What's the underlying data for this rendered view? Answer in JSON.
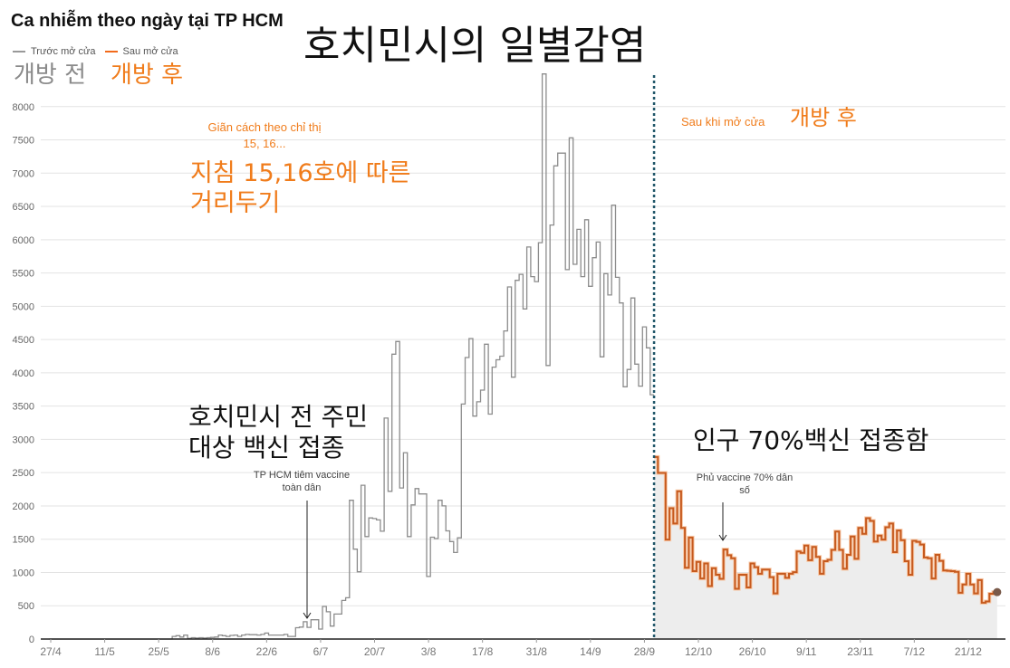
{
  "header": {
    "title": "Ca nhiễm theo ngày tại TP HCM"
  },
  "overlay_ko": {
    "title": "호치민시의 일별감염",
    "before": "개방 전",
    "after": "개방 후",
    "distancing_line1": "지침 15,16호에 따른",
    "distancing_line2": "거리두기",
    "after_reopen": "개방 후",
    "vaccine_line1": "호치민시 전 주민",
    "vaccine_line2": "대상 백신 접종",
    "seventy": "인구 70%백신 접종함"
  },
  "chart_data": {
    "type": "line",
    "step": true,
    "title": "Ca nhiễm theo ngày tại TP HCM",
    "xlabel": "",
    "ylabel": "",
    "ylim": [
      0,
      8500
    ],
    "yticks": [
      0,
      500,
      1000,
      1500,
      2000,
      2500,
      3000,
      3500,
      4000,
      4500,
      5000,
      5500,
      6000,
      6500,
      7000,
      7500,
      8000
    ],
    "xticks": [
      "27/4",
      "11/5",
      "25/5",
      "8/6",
      "22/6",
      "6/7",
      "20/7",
      "3/8",
      "17/8",
      "31/8",
      "14/9",
      "28/9",
      "12/10",
      "26/10",
      "9/11",
      "23/11",
      "7/12",
      "21/12"
    ],
    "grid": {
      "horizontal": true,
      "vertical": false
    },
    "legend_placement": "top-left",
    "colors": {
      "before": "#8c8c8c",
      "after": "#c65a1e",
      "after_fill": "#ededed",
      "reopen_line": "#1f5568",
      "end_dot": "#7a5a4a",
      "annotation": "#f07c1b"
    },
    "series": [
      {
        "name": "Trước mở cửa",
        "x": [
          "27/4",
          "28/4",
          "29/4",
          "30/4",
          "1/5",
          "2/5",
          "3/5",
          "4/5",
          "5/5",
          "6/5",
          "7/5",
          "8/5",
          "9/5",
          "10/5",
          "11/5",
          "12/5",
          "13/5",
          "14/5",
          "15/5",
          "16/5",
          "17/5",
          "18/5",
          "19/5",
          "20/5",
          "21/5",
          "22/5",
          "23/5",
          "24/5",
          "25/5",
          "26/5",
          "27/5",
          "28/5",
          "29/5",
          "30/5",
          "31/5",
          "1/6",
          "2/6",
          "3/6",
          "4/6",
          "5/6",
          "6/6",
          "7/6",
          "8/6",
          "9/6",
          "10/6",
          "11/6",
          "12/6",
          "13/6",
          "14/6",
          "15/6",
          "16/6",
          "17/6",
          "18/6",
          "19/6",
          "20/6",
          "21/6",
          "22/6",
          "23/6",
          "24/6",
          "25/6",
          "26/6",
          "27/6",
          "28/6",
          "29/6",
          "30/6",
          "1/7",
          "2/7",
          "3/7",
          "4/7",
          "5/7",
          "6/7",
          "7/7",
          "8/7",
          "9/7",
          "10/7",
          "11/7",
          "12/7",
          "13/7",
          "14/7",
          "15/7",
          "16/7",
          "17/7",
          "18/7",
          "19/7",
          "20/7",
          "21/7",
          "22/7",
          "23/7",
          "24/7",
          "25/7",
          "26/7",
          "27/7",
          "28/7",
          "29/7",
          "30/7",
          "31/7",
          "1/8",
          "2/8",
          "3/8",
          "4/8",
          "5/8",
          "6/8",
          "7/8",
          "8/8",
          "9/8",
          "10/8",
          "11/8",
          "12/8",
          "13/8",
          "14/8",
          "15/8",
          "16/8",
          "17/8",
          "18/8",
          "19/8",
          "20/8",
          "21/8",
          "22/8",
          "23/8",
          "24/8",
          "25/8",
          "26/8",
          "27/8",
          "28/8",
          "29/8",
          "30/8",
          "31/8",
          "1/9",
          "2/9",
          "3/9",
          "4/9",
          "5/9",
          "6/9",
          "7/9",
          "8/9",
          "9/9",
          "10/9",
          "11/9",
          "12/9",
          "13/9",
          "14/9",
          "15/9",
          "16/9",
          "17/9",
          "18/9",
          "19/9",
          "20/9",
          "21/9",
          "22/9",
          "23/9",
          "24/9",
          "25/9",
          "26/9",
          "27/9",
          "28/9",
          "29/9",
          "30/9"
        ],
        "y": [
          0,
          0,
          0,
          0,
          0,
          0,
          0,
          0,
          0,
          0,
          0,
          0,
          0,
          0,
          0,
          0,
          0,
          0,
          0,
          0,
          0,
          0,
          0,
          0,
          0,
          0,
          0,
          0,
          0,
          0,
          0,
          0,
          40,
          50,
          30,
          60,
          10,
          20,
          15,
          20,
          15,
          20,
          25,
          30,
          60,
          50,
          40,
          55,
          60,
          40,
          60,
          70,
          65,
          65,
          60,
          70,
          90,
          60,
          60,
          60,
          60,
          70,
          40,
          40,
          170,
          180,
          260,
          175,
          290,
          290,
          150,
          490,
          410,
          195,
          375,
          375,
          580,
          620,
          2085,
          1350,
          1010,
          2310,
          1540,
          1820,
          1810,
          1790,
          1620,
          3320,
          2220,
          4280,
          4470,
          2270,
          2800,
          1540,
          2015,
          2260,
          2180,
          2180,
          940,
          1530,
          1510,
          2085,
          2000,
          1625,
          1465,
          1300,
          1520,
          3530,
          4230,
          4515,
          3350,
          3565,
          3740,
          4430,
          3380,
          4085,
          4195,
          4250,
          4630,
          5290,
          3935,
          5390,
          5480,
          4960,
          5890,
          5445,
          5370,
          5955,
          8490,
          4110,
          6220,
          7110,
          7300,
          7300,
          5550,
          7530,
          5630,
          6155,
          5445,
          6300,
          5300,
          5730,
          5965,
          4240,
          5490,
          5170,
          6520,
          5435,
          5050,
          3790,
          4050,
          5125,
          4130,
          3800,
          4690,
          4375,
          3670
        ]
      },
      {
        "name": "Sau mở cửa",
        "x": [
          "1/10",
          "2/10",
          "3/10",
          "4/10",
          "5/10",
          "6/10",
          "7/10",
          "8/10",
          "9/10",
          "10/10",
          "11/10",
          "12/10",
          "13/10",
          "14/10",
          "15/10",
          "16/10",
          "17/10",
          "18/10",
          "19/10",
          "20/10",
          "21/10",
          "22/10",
          "23/10",
          "24/10",
          "25/10",
          "26/10",
          "27/10",
          "28/10",
          "29/10",
          "30/10",
          "31/10",
          "1/11",
          "2/11",
          "3/11",
          "4/11",
          "5/11",
          "6/11",
          "7/11",
          "8/11",
          "9/11",
          "10/11",
          "11/11",
          "12/11",
          "13/11",
          "14/11",
          "15/11",
          "16/11",
          "17/11",
          "18/11",
          "19/11",
          "20/11",
          "21/11",
          "22/11",
          "23/11",
          "24/11",
          "25/11",
          "26/11",
          "27/11",
          "28/11",
          "29/11",
          "30/11",
          "1/12",
          "2/12",
          "3/12",
          "4/12",
          "5/12",
          "6/12",
          "7/12",
          "8/12",
          "9/12",
          "10/12",
          "11/12",
          "12/12",
          "13/12",
          "14/12",
          "15/12",
          "16/12",
          "17/12",
          "18/12",
          "19/12",
          "20/12",
          "21/12",
          "22/12",
          "23/12",
          "24/12",
          "25/12",
          "26/12",
          "27/12",
          "28/12"
        ],
        "y": [
          2735,
          2495,
          2495,
          1495,
          1965,
          1735,
          2220,
          1670,
          1070,
          1525,
          1020,
          1160,
          910,
          1135,
          795,
          1065,
          965,
          905,
          1345,
          1260,
          1215,
          755,
          965,
          965,
          775,
          1135,
          1080,
          980,
          1045,
          1045,
          930,
          685,
          980,
          980,
          920,
          980,
          1005,
          1315,
          1295,
          1405,
          1185,
          1385,
          1235,
          980,
          1170,
          1190,
          1340,
          1615,
          1340,
          1055,
          1265,
          1540,
          1205,
          1670,
          1580,
          1815,
          1775,
          1465,
          1555,
          1495,
          1680,
          1735,
          1305,
          1630,
          1485,
          1170,
          965,
          1475,
          1460,
          1420,
          1225,
          1215,
          910,
          1265,
          1175,
          1030,
          1025,
          1020,
          1010,
          695,
          820,
          980,
          820,
          685,
          885,
          545,
          565,
          680,
          705
        ]
      }
    ],
    "annotations": {
      "distancing_line1": "Giãn cách theo chỉ thị",
      "distancing_line2": "15, 16...",
      "after_reopen": "Sau khi mở cửa",
      "vaccine_line1": "TP HCM tiêm vaccine",
      "vaccine_line2": "toàn dân",
      "seventy_line1": "Phủ vaccine 70% dân",
      "seventy_line2": "số"
    }
  }
}
